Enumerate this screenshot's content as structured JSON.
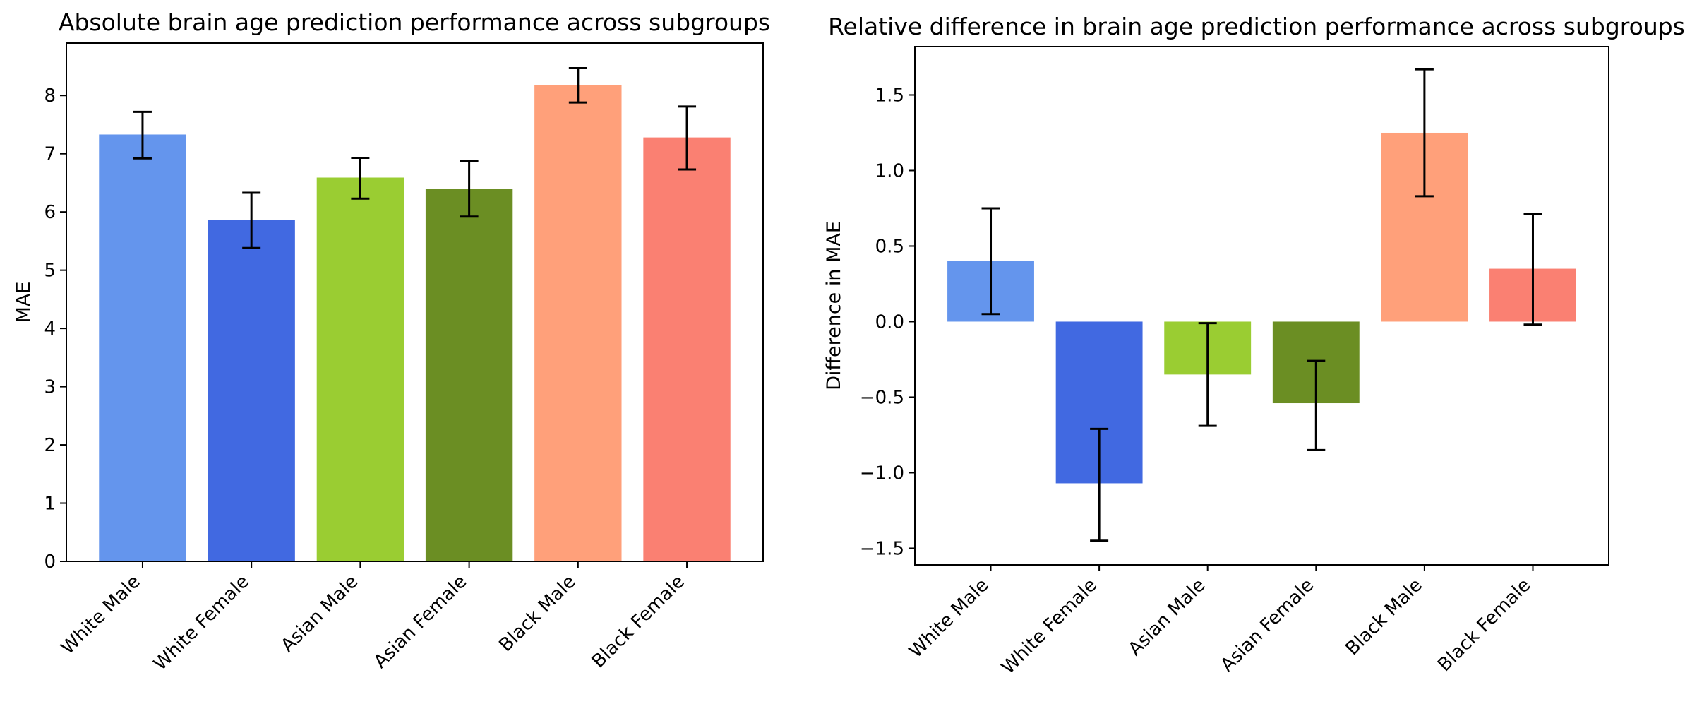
{
  "chart_data": [
    {
      "type": "bar",
      "title": "Absolute brain age prediction performance across subgroups",
      "xlabel": "",
      "ylabel": "MAE",
      "ylim": [
        0,
        8.9
      ],
      "yticks": [
        0,
        1,
        2,
        3,
        4,
        5,
        6,
        7,
        8
      ],
      "categories": [
        "White Male",
        "White Female",
        "Asian Male",
        "Asian Female",
        "Black Male",
        "Black Female"
      ],
      "values": [
        7.33,
        5.86,
        6.59,
        6.4,
        8.18,
        7.28
      ],
      "error_low": [
        6.92,
        5.38,
        6.23,
        5.92,
        7.88,
        6.73
      ],
      "error_high": [
        7.72,
        6.33,
        6.93,
        6.88,
        8.47,
        7.81
      ],
      "colors": [
        "#6495ED",
        "#4169E1",
        "#9ACD32",
        "#6B8E23",
        "#FFA07A",
        "#FA8072"
      ]
    },
    {
      "type": "bar",
      "title": "Relative difference in brain age prediction performance across subgroups",
      "xlabel": "",
      "ylabel": "Difference in MAE",
      "ylim": [
        -1.61,
        1.82
      ],
      "yticks": [
        -1.5,
        -1.0,
        -0.5,
        0.0,
        0.5,
        1.0,
        1.5
      ],
      "ytick_labels": [
        "−1.5",
        "−1.0",
        "−0.5",
        "0.0",
        "0.5",
        "1.0",
        "1.5"
      ],
      "categories": [
        "White Male",
        "White Female",
        "Asian Male",
        "Asian Female",
        "Black Male",
        "Black Female"
      ],
      "values": [
        0.4,
        -1.07,
        -0.35,
        -0.54,
        1.25,
        0.35
      ],
      "error_low": [
        0.05,
        -1.45,
        -0.69,
        -0.85,
        0.83,
        -0.02
      ],
      "error_high": [
        0.75,
        -0.71,
        -0.01,
        -0.26,
        1.67,
        0.71
      ],
      "colors": [
        "#6495ED",
        "#4169E1",
        "#9ACD32",
        "#6B8E23",
        "#FFA07A",
        "#FA8072"
      ]
    }
  ]
}
